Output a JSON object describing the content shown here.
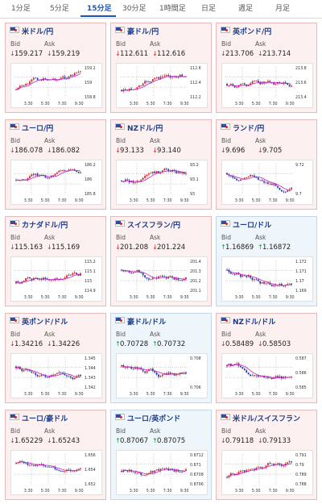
{
  "tabs": [
    {
      "label": "1分足",
      "active": false
    },
    {
      "label": "5分足",
      "active": false
    },
    {
      "label": "15分足",
      "active": true
    },
    {
      "label": "30分足",
      "active": false
    },
    {
      "label": "1時間足",
      "active": false
    },
    {
      "label": "日足",
      "active": false
    },
    {
      "label": "週足",
      "active": false
    },
    {
      "label": "月足",
      "active": false
    }
  ],
  "labels": {
    "bid": "Bid",
    "ask": "Ask"
  },
  "colors": {
    "down": "#d22727",
    "up": "#1b9a3a",
    "candle_up": "#d22727",
    "candle_down": "#2b3fa8",
    "ma": "#c81ec8"
  },
  "time_ticks": [
    "3:30",
    "5:30",
    "7:30",
    "9:30"
  ],
  "cards": [
    {
      "name": "usd-jpy",
      "title": "米ドル/円",
      "dir": "down",
      "bid": "159.217",
      "ask": "159.219",
      "yticks": [
        "159.2",
        "159",
        "158.8"
      ],
      "trend": "up"
    },
    {
      "name": "aud-jpy",
      "title": "豪ドル/円",
      "dir": "down",
      "bid": "112.611",
      "ask": "112.616",
      "yticks": [
        "112.6",
        "112.4",
        "112.2"
      ],
      "trend": "up"
    },
    {
      "name": "gbp-jpy",
      "title": "英ポンド/円",
      "dir": "down",
      "bid": "213.706",
      "ask": "213.714",
      "yticks": [
        "213.8",
        "213.6",
        "213.4"
      ],
      "trend": "flat"
    },
    {
      "name": "eur-jpy",
      "title": "ユーロ/円",
      "dir": "down",
      "bid": "186.078",
      "ask": "186.082",
      "yticks": [
        "186.2",
        "186",
        "185.8"
      ],
      "trend": "flat"
    },
    {
      "name": "nzd-jpy",
      "title": "NZドル/円",
      "dir": "down",
      "bid": "93.133",
      "ask": "93.140",
      "yticks": [
        "93.2",
        "93.1",
        "93"
      ],
      "trend": "flat"
    },
    {
      "name": "zar-jpy",
      "title": "ランド/円",
      "dir": "down",
      "bid": "9.696",
      "ask": "9.705",
      "yticks": [
        "9.72",
        "9.7"
      ],
      "trend": "down"
    },
    {
      "name": "cad-jpy",
      "title": "カナダドル/円",
      "dir": "down",
      "bid": "115.163",
      "ask": "115.169",
      "yticks": [
        "115.2",
        "115.1",
        "115",
        "114.9"
      ],
      "trend": "up"
    },
    {
      "name": "chf-jpy",
      "title": "スイスフラン/円",
      "dir": "down",
      "bid": "201.208",
      "ask": "201.224",
      "yticks": [
        "201.4",
        "201.3",
        "201.2",
        "201.1"
      ],
      "trend": "down"
    },
    {
      "name": "eur-usd",
      "title": "ユーロ/ドル",
      "dir": "up",
      "bid": "1.16869",
      "ask": "1.16872",
      "yticks": [
        "1.172",
        "1.171",
        "1.17",
        "1.169"
      ],
      "trend": "down"
    },
    {
      "name": "gbp-usd",
      "title": "英ポンド/ドル",
      "dir": "down",
      "bid": "1.34216",
      "ask": "1.34226",
      "yticks": [
        "1.345",
        "1.344",
        "1.343",
        "1.342"
      ],
      "trend": "down"
    },
    {
      "name": "aud-usd",
      "title": "豪ドル/ドル",
      "dir": "up",
      "bid": "0.70728",
      "ask": "0.70732",
      "yticks": [
        "0.708",
        "0.706"
      ],
      "trend": "down"
    },
    {
      "name": "nzd-usd",
      "title": "NZドル/ドル",
      "dir": "down",
      "bid": "0.58489",
      "ask": "0.58503",
      "yticks": [
        "0.587",
        "0.586",
        "0.585"
      ],
      "trend": "down"
    },
    {
      "name": "eur-aud",
      "title": "ユーロ/豪ドル",
      "dir": "down",
      "bid": "1.65229",
      "ask": "1.65243",
      "yticks": [
        "1.656",
        "1.654",
        "1.652"
      ],
      "trend": "down"
    },
    {
      "name": "eur-gbp",
      "title": "ユーロ/英ポンド",
      "dir": "up",
      "bid": "0.87067",
      "ask": "0.87075",
      "yticks": [
        "0.8712",
        "0.871",
        "0.8708",
        "0.8706"
      ],
      "trend": "flat"
    },
    {
      "name": "usd-chf",
      "title": "米ドル/スイスフラン",
      "dir": "down",
      "bid": "0.79118",
      "ask": "0.79133",
      "yticks": [
        "0.791",
        "0.79",
        "0.789",
        "0.788"
      ],
      "trend": "up"
    }
  ]
}
